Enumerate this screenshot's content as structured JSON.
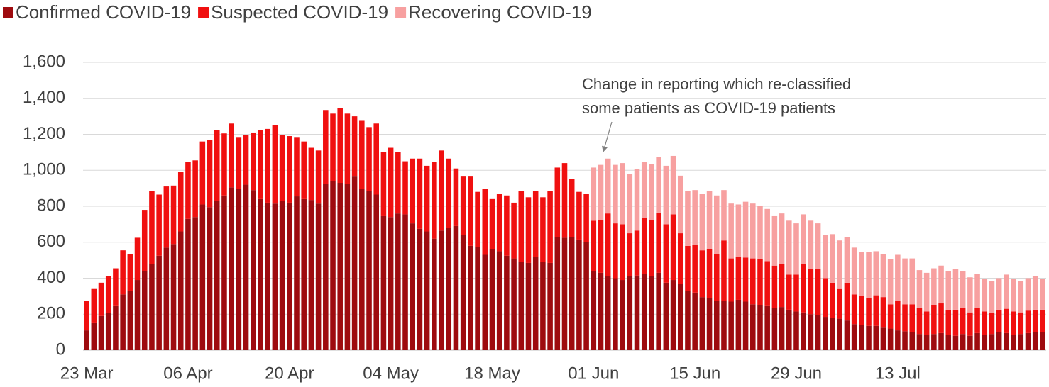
{
  "chart_data": {
    "type": "stacked_bar",
    "categories": [
      "23 Mar",
      null,
      null,
      null,
      null,
      null,
      null,
      null,
      null,
      null,
      null,
      null,
      null,
      null,
      "06 Apr",
      null,
      null,
      null,
      null,
      null,
      null,
      null,
      null,
      null,
      null,
      null,
      null,
      null,
      "20 Apr",
      null,
      null,
      null,
      null,
      null,
      null,
      null,
      null,
      null,
      null,
      null,
      null,
      null,
      "04 May",
      null,
      null,
      null,
      null,
      null,
      null,
      null,
      null,
      null,
      null,
      null,
      null,
      null,
      "18 May",
      null,
      null,
      null,
      null,
      null,
      null,
      null,
      null,
      null,
      null,
      null,
      null,
      null,
      "01 Jun",
      null,
      null,
      null,
      null,
      null,
      null,
      null,
      null,
      null,
      null,
      null,
      null,
      null,
      "15 Jun",
      null,
      null,
      null,
      null,
      null,
      null,
      null,
      null,
      null,
      null,
      null,
      null,
      null,
      "29 Jun",
      null,
      null,
      null,
      null,
      null,
      null,
      null,
      null,
      null,
      null,
      null,
      null,
      null,
      "13 Jul",
      null,
      null,
      null,
      null,
      null,
      null,
      null,
      null,
      null,
      null,
      null,
      null,
      null,
      null,
      null,
      null,
      null,
      null,
      null,
      null
    ],
    "series": [
      {
        "name": "Confirmed COVID-19",
        "color": "#9e0b0f",
        "values": [
          110,
          150,
          190,
          205,
          245,
          310,
          330,
          390,
          440,
          480,
          525,
          570,
          590,
          660,
          730,
          740,
          810,
          795,
          830,
          860,
          905,
          895,
          920,
          890,
          840,
          820,
          815,
          830,
          820,
          855,
          840,
          835,
          815,
          925,
          940,
          930,
          925,
          965,
          895,
          885,
          865,
          745,
          740,
          760,
          755,
          705,
          675,
          660,
          620,
          665,
          680,
          690,
          640,
          580,
          575,
          530,
          560,
          550,
          525,
          510,
          490,
          485,
          520,
          490,
          485,
          630,
          625,
          630,
          615,
          600,
          440,
          430,
          410,
          400,
          390,
          410,
          415,
          425,
          410,
          430,
          375,
          390,
          370,
          330,
          320,
          295,
          290,
          275,
          275,
          270,
          280,
          270,
          255,
          250,
          245,
          235,
          240,
          225,
          215,
          210,
          200,
          195,
          185,
          180,
          175,
          165,
          145,
          140,
          135,
          135,
          125,
          120,
          110,
          105,
          100,
          90,
          85,
          90,
          95,
          85,
          80,
          90,
          80,
          95,
          85,
          90,
          100,
          95,
          85,
          90,
          95,
          100,
          100
        ]
      },
      {
        "name": "Suspected COVID-19",
        "color": "#f01010",
        "values": [
          165,
          190,
          185,
          205,
          210,
          245,
          205,
          235,
          340,
          405,
          340,
          340,
          325,
          330,
          315,
          315,
          350,
          375,
          395,
          345,
          355,
          290,
          275,
          320,
          385,
          410,
          435,
          365,
          370,
          330,
          320,
          290,
          295,
          410,
          375,
          415,
          390,
          335,
          380,
          355,
          395,
          355,
          385,
          340,
          295,
          360,
          390,
          365,
          425,
          445,
          385,
          320,
          325,
          385,
          305,
          365,
          280,
          320,
          335,
          310,
          395,
          365,
          365,
          360,
          400,
          385,
          415,
          320,
          265,
          270,
          280,
          295,
          350,
          305,
          310,
          240,
          250,
          310,
          315,
          335,
          325,
          365,
          280,
          250,
          265,
          260,
          270,
          260,
          335,
          240,
          240,
          245,
          255,
          255,
          250,
          235,
          240,
          195,
          205,
          270,
          250,
          255,
          215,
          195,
          165,
          210,
          165,
          160,
          155,
          170,
          170,
          135,
          165,
          150,
          155,
          145,
          130,
          160,
          165,
          140,
          145,
          145,
          130,
          140,
          130,
          115,
          125,
          135,
          130,
          120,
          125,
          125,
          125
        ]
      },
      {
        "name": "Recovering COVID-19",
        "color": "#f7a0a0",
        "values": [
          null,
          null,
          null,
          null,
          null,
          null,
          null,
          null,
          null,
          null,
          null,
          null,
          null,
          null,
          null,
          null,
          null,
          null,
          null,
          null,
          null,
          null,
          null,
          null,
          null,
          null,
          null,
          null,
          null,
          null,
          null,
          null,
          null,
          null,
          null,
          null,
          null,
          null,
          null,
          null,
          null,
          null,
          null,
          null,
          null,
          null,
          null,
          null,
          null,
          null,
          null,
          null,
          null,
          null,
          null,
          null,
          null,
          null,
          null,
          null,
          null,
          null,
          null,
          null,
          null,
          null,
          null,
          null,
          null,
          null,
          295,
          305,
          305,
          325,
          340,
          330,
          340,
          310,
          310,
          310,
          325,
          325,
          320,
          305,
          305,
          315,
          325,
          325,
          280,
          305,
          290,
          310,
          305,
          295,
          290,
          275,
          280,
          300,
          285,
          275,
          270,
          255,
          240,
          270,
          270,
          255,
          260,
          245,
          255,
          245,
          240,
          250,
          255,
          255,
          255,
          210,
          215,
          205,
          210,
          215,
          225,
          205,
          195,
          190,
          180,
          180,
          175,
          190,
          180,
          175,
          180,
          185,
          170
        ]
      }
    ],
    "ylim": [
      0,
      1600
    ],
    "yticks": [
      0,
      200,
      400,
      600,
      800,
      {
        "value": 1000,
        "label": "1,000"
      },
      {
        "value": 1200,
        "label": "1,200"
      },
      {
        "value": 1400,
        "label": "1,400"
      },
      {
        "value": 1600,
        "label": "1,600"
      }
    ],
    "grid": true,
    "legend": "top",
    "annotation": [
      "Change in reporting which re-classified",
      "some patients as COVID-19 patients"
    ]
  }
}
